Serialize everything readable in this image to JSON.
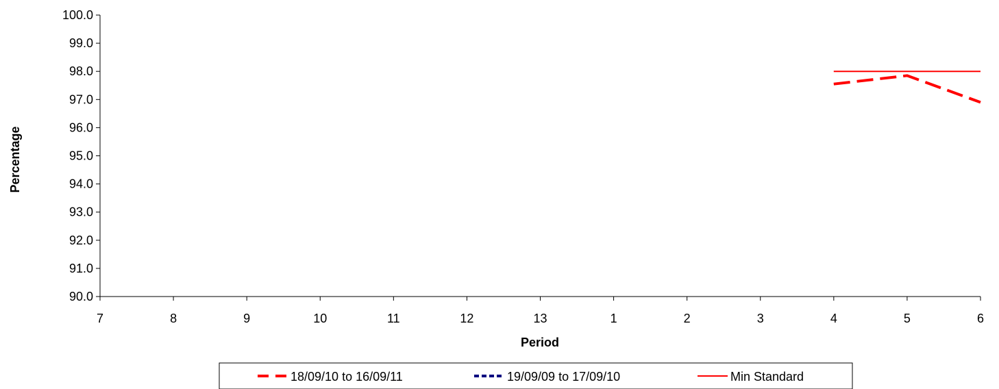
{
  "chart_data": {
    "type": "line",
    "title": "",
    "xlabel": "Period",
    "ylabel": "Percentage",
    "categories": [
      "7",
      "8",
      "9",
      "10",
      "11",
      "12",
      "13",
      "1",
      "2",
      "3",
      "4",
      "5",
      "6"
    ],
    "y_ticks": [
      "90.0",
      "91.0",
      "92.0",
      "93.0",
      "94.0",
      "95.0",
      "96.0",
      "97.0",
      "98.0",
      "99.0",
      "100.0"
    ],
    "ylim": [
      90,
      100
    ],
    "grid": false,
    "legend_position": "bottom",
    "series": [
      {
        "name": "18/09/10 to 16/09/11",
        "color": "#ff0000",
        "style": "long-dash",
        "values": [
          null,
          null,
          null,
          null,
          null,
          null,
          null,
          null,
          null,
          null,
          97.55,
          97.85,
          96.9
        ]
      },
      {
        "name": "19/09/09 to 17/09/10",
        "color": "#000080",
        "style": "short-dash",
        "values": [
          null,
          null,
          null,
          null,
          null,
          null,
          null,
          null,
          null,
          null,
          null,
          null,
          null
        ]
      },
      {
        "name": "Min Standard",
        "color": "#ff0000",
        "style": "solid",
        "values": [
          null,
          null,
          null,
          null,
          null,
          null,
          null,
          null,
          null,
          null,
          98.0,
          98.0,
          98.0
        ]
      }
    ]
  }
}
